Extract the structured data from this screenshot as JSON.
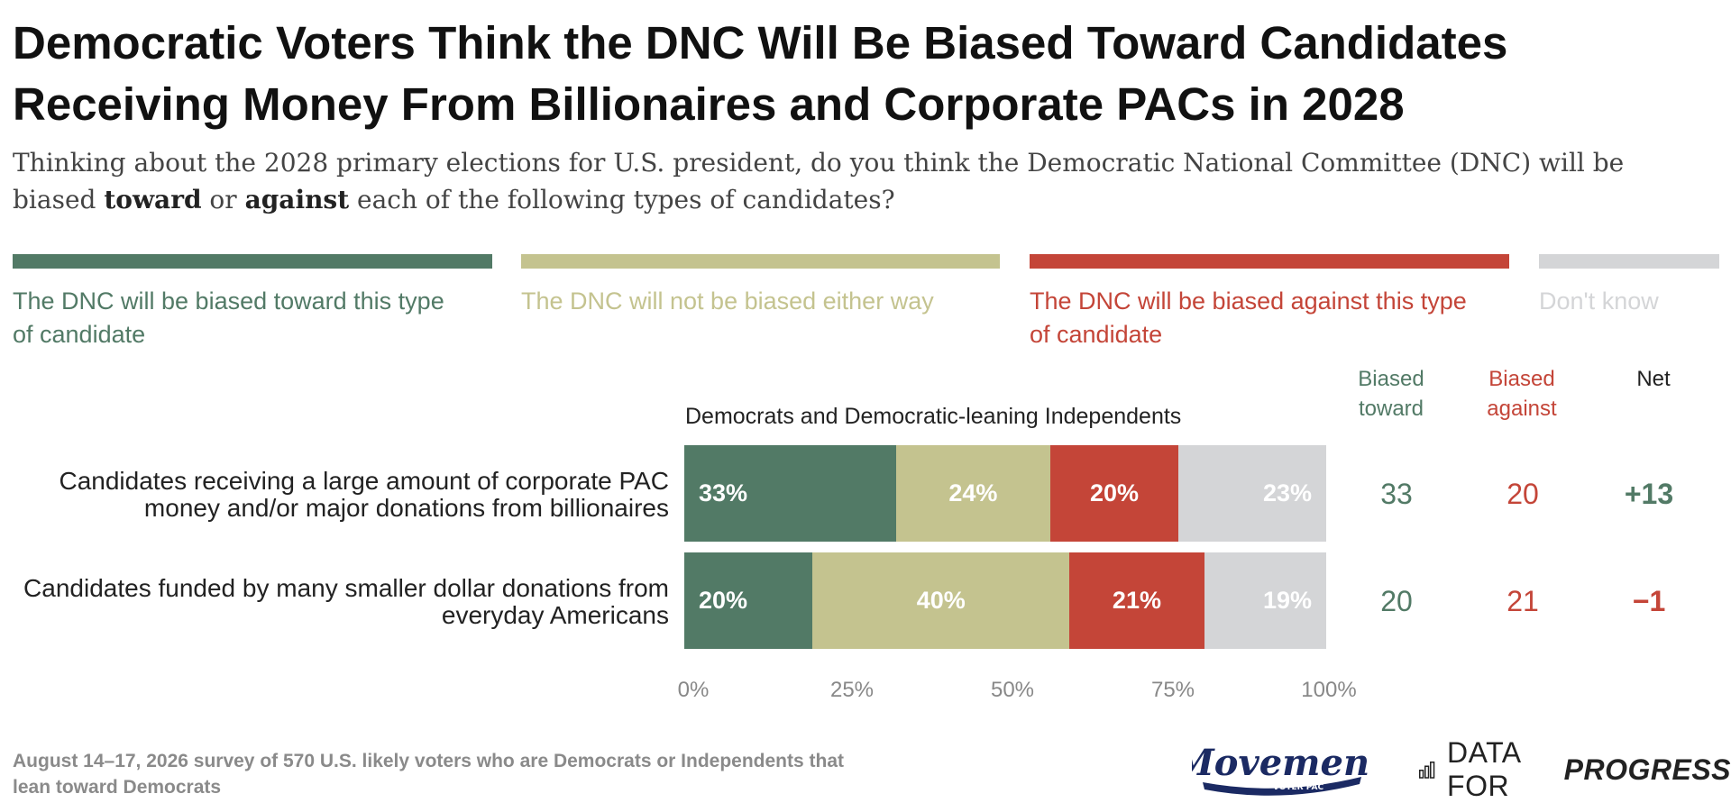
{
  "title": "Democratic Voters Think the DNC Will Be Biased Toward Candidates Receiving Money From Billionaires and Corporate PACs in 2028",
  "subtitle": {
    "part1": "Thinking about the 2028 primary elections for U.S. president, do you think the Democratic National Committee (DNC) will be biased ",
    "toward": "toward",
    "or": " or ",
    "against": "against",
    "part2": " each of the following types of candidates?"
  },
  "legend": [
    {
      "label": "The DNC will be biased toward this type of candidate",
      "color": "#527a66"
    },
    {
      "label": "The DNC will not be biased either way",
      "color": "#c4c38f"
    },
    {
      "label": "The DNC will be biased against this type of candidate",
      "color": "#c44538"
    },
    {
      "label": "Don't know",
      "color": "#d4d5d7"
    }
  ],
  "columns": {
    "biased_toward": "Biased toward",
    "biased_against": "Biased against",
    "net": "Net"
  },
  "group_label": "Democrats and Democratic-leaning Independents",
  "rows": [
    {
      "label": "Candidates receiving a large amount of corporate PAC money and/or major donations from billionaires",
      "labels": [
        "33%",
        "24%",
        "20%",
        "23%"
      ],
      "biased_toward": "33",
      "biased_against": "20",
      "net": "+13",
      "net_color": "#527a66"
    },
    {
      "label": "Candidates funded by many smaller dollar donations from everyday Americans",
      "labels": [
        "20%",
        "40%",
        "21%",
        "19%"
      ],
      "biased_toward": "20",
      "biased_against": "21",
      "net": "−1",
      "net_color": "#c44538"
    }
  ],
  "ticks": [
    "0%",
    "25%",
    "50%",
    "75%",
    "100%"
  ],
  "footnote": "August 14–17, 2026 survey of 570 U.S. likely voters who are Democrats or Independents that lean toward Democrats",
  "branding": {
    "movement": "Movement",
    "movement_sub": "VOTER PAC",
    "dfp_light": "DATA FOR",
    "dfp_bold": "PROGRESS"
  },
  "chart_data": {
    "type": "bar",
    "orientation": "horizontal",
    "stacked": true,
    "categories": [
      "Candidates receiving a large amount of corporate PAC money and/or major donations from billionaires",
      "Candidates funded by many smaller dollar donations from everyday Americans"
    ],
    "series": [
      {
        "name": "The DNC will be biased toward this type of candidate",
        "values": [
          33,
          20
        ]
      },
      {
        "name": "The DNC will not be biased either way",
        "values": [
          24,
          40
        ]
      },
      {
        "name": "The DNC will be biased against this type of candidate",
        "values": [
          20,
          21
        ]
      },
      {
        "name": "Don't know",
        "values": [
          23,
          19
        ]
      }
    ],
    "title": "Democratic Voters Think the DNC Will Be Biased Toward Candidates Receiving Money From Billionaires and Corporate PACs in 2028",
    "xlabel": "",
    "ylabel": "",
    "xlim": [
      0,
      100
    ],
    "xticks": [
      "0%",
      "25%",
      "50%",
      "75%",
      "100%"
    ],
    "grid": false,
    "legend_position": "top"
  }
}
